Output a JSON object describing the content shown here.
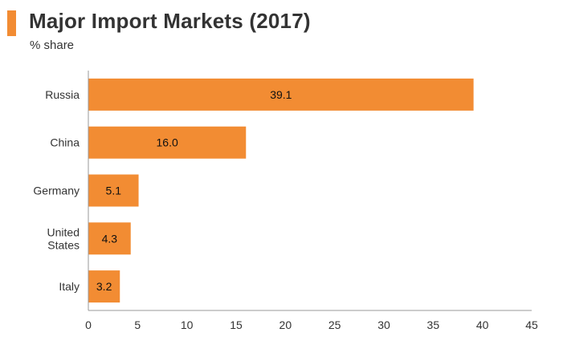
{
  "header": {
    "title": "Major Import Markets (2017)",
    "subtitle": "% share"
  },
  "colors": {
    "accent": "#f28c33",
    "bar": "#f28c33",
    "axis": "#999999",
    "text": "#333333"
  },
  "chart_data": {
    "type": "bar",
    "orientation": "horizontal",
    "title": "Major Import Markets (2017)",
    "subtitle": "% share",
    "categories": [
      "Russia",
      "China",
      "Germany",
      "United States",
      "Italy"
    ],
    "category_lines": [
      [
        "Russia"
      ],
      [
        "China"
      ],
      [
        "Germany"
      ],
      [
        "United",
        "States"
      ],
      [
        "Italy"
      ]
    ],
    "values": [
      39.1,
      16.0,
      5.1,
      4.3,
      3.2
    ],
    "value_labels": [
      "39.1",
      "16.0",
      "5.1",
      "4.3",
      "3.2"
    ],
    "xlim": [
      0,
      45
    ],
    "xticks": [
      0,
      5,
      10,
      15,
      20,
      25,
      30,
      35,
      40,
      45
    ],
    "xlabel": "",
    "ylabel": "",
    "grid": false,
    "legend": "none"
  }
}
